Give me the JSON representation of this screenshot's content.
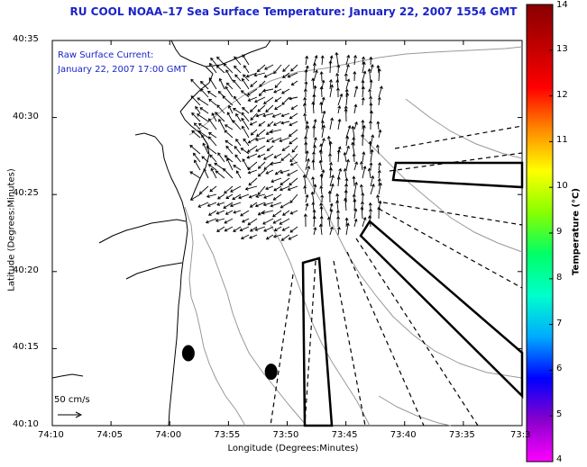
{
  "title": "RU COOL  NOAA–17  Sea Surface Temperature:  January 22, 2007 1554 GMT",
  "raw_current": {
    "line1": "Raw Surface Current:",
    "line2": "January 22, 2007 17:00 GMT"
  },
  "scale_label": "50 cm/s",
  "axes": {
    "xlabel": "Longitude (Degrees:Minutes)",
    "ylabel": "Latitude (Degrees:Minutes)",
    "xticks": [
      "74:10",
      "74:05",
      "74:00",
      "73:55",
      "73:50",
      "73:45",
      "73:40",
      "73:35",
      "73:3"
    ],
    "yticks": [
      "40:35",
      "40:30",
      "40:25",
      "40:20",
      "40:15",
      "40:10"
    ]
  },
  "colorbar": {
    "label": "Temperature (°C)",
    "ticks": [
      "14",
      "13",
      "12",
      "11",
      "10",
      "9",
      "8",
      "7",
      "6",
      "5",
      "4"
    ],
    "colors": [
      "#880000",
      "#c00000",
      "#ff0000",
      "#ff8800",
      "#ffff00",
      "#88ff00",
      "#00ff66",
      "#00ffcc",
      "#00aaff",
      "#0000ff",
      "#8800cc",
      "#ff00ff"
    ]
  },
  "map": {
    "lon_range": [
      -74.1667,
      -73.5333
    ],
    "lat_range": [
      40.1667,
      40.5833
    ],
    "buoys": [
      {
        "lon": -73.9833,
        "lat": 40.245
      },
      {
        "lon": -73.8717,
        "lat": 40.225
      }
    ]
  }
}
